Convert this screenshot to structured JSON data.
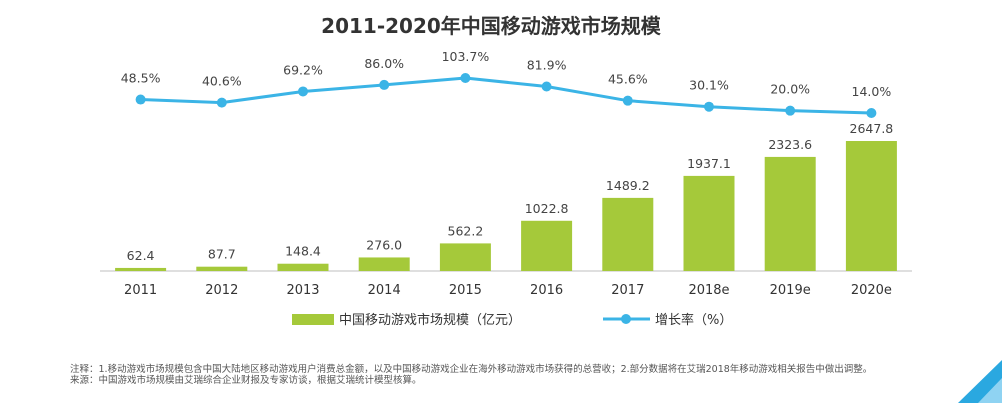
{
  "chart_data": {
    "type": "bar+line",
    "title": "2011-2020年中国移动游戏市场规模",
    "categories": [
      "2011",
      "2012",
      "2013",
      "2014",
      "2015",
      "2016",
      "2017",
      "2018e",
      "2019e",
      "2020e"
    ],
    "series": [
      {
        "name": "中国移动游戏市场规模（亿元）",
        "type": "bar",
        "values": [
          62.4,
          87.7,
          148.4,
          276.0,
          562.2,
          1022.8,
          1489.2,
          1937.1,
          2323.6,
          2647.8
        ],
        "labels": [
          "62.4",
          "87.7",
          "148.4",
          "276.0",
          "562.2",
          "1022.8",
          "1489.2",
          "1937.1",
          "2323.6",
          "2647.8"
        ]
      },
      {
        "name": "增长率（%）",
        "type": "line",
        "values": [
          48.5,
          40.6,
          69.2,
          86.0,
          103.7,
          81.9,
          45.6,
          30.1,
          20.0,
          14.0
        ],
        "labels": [
          "48.5%",
          "40.6%",
          "69.2%",
          "86.0%",
          "103.7%",
          "81.9%",
          "45.6%",
          "30.1%",
          "20.0%",
          "14.0%"
        ]
      }
    ],
    "legend_position": "bottom",
    "grid": false
  },
  "notes": {
    "note": "注释：1.移动游戏市场规模包含中国大陆地区移动游戏用户消费总金额，以及中国移动游戏企业在海外移动游戏市场获得的总营收；2.部分数据将在艾瑞2018年移动游戏相关报告中做出调整。",
    "source": "来源：中国游戏市场规模由艾瑞综合企业财报及专家访谈，根据艾瑞统计模型核算。"
  },
  "colors": {
    "bar": "#a5c93a",
    "line": "#3bb4e6",
    "axis": "#bfbfbf",
    "accent_corner": "#2aa8e0"
  }
}
